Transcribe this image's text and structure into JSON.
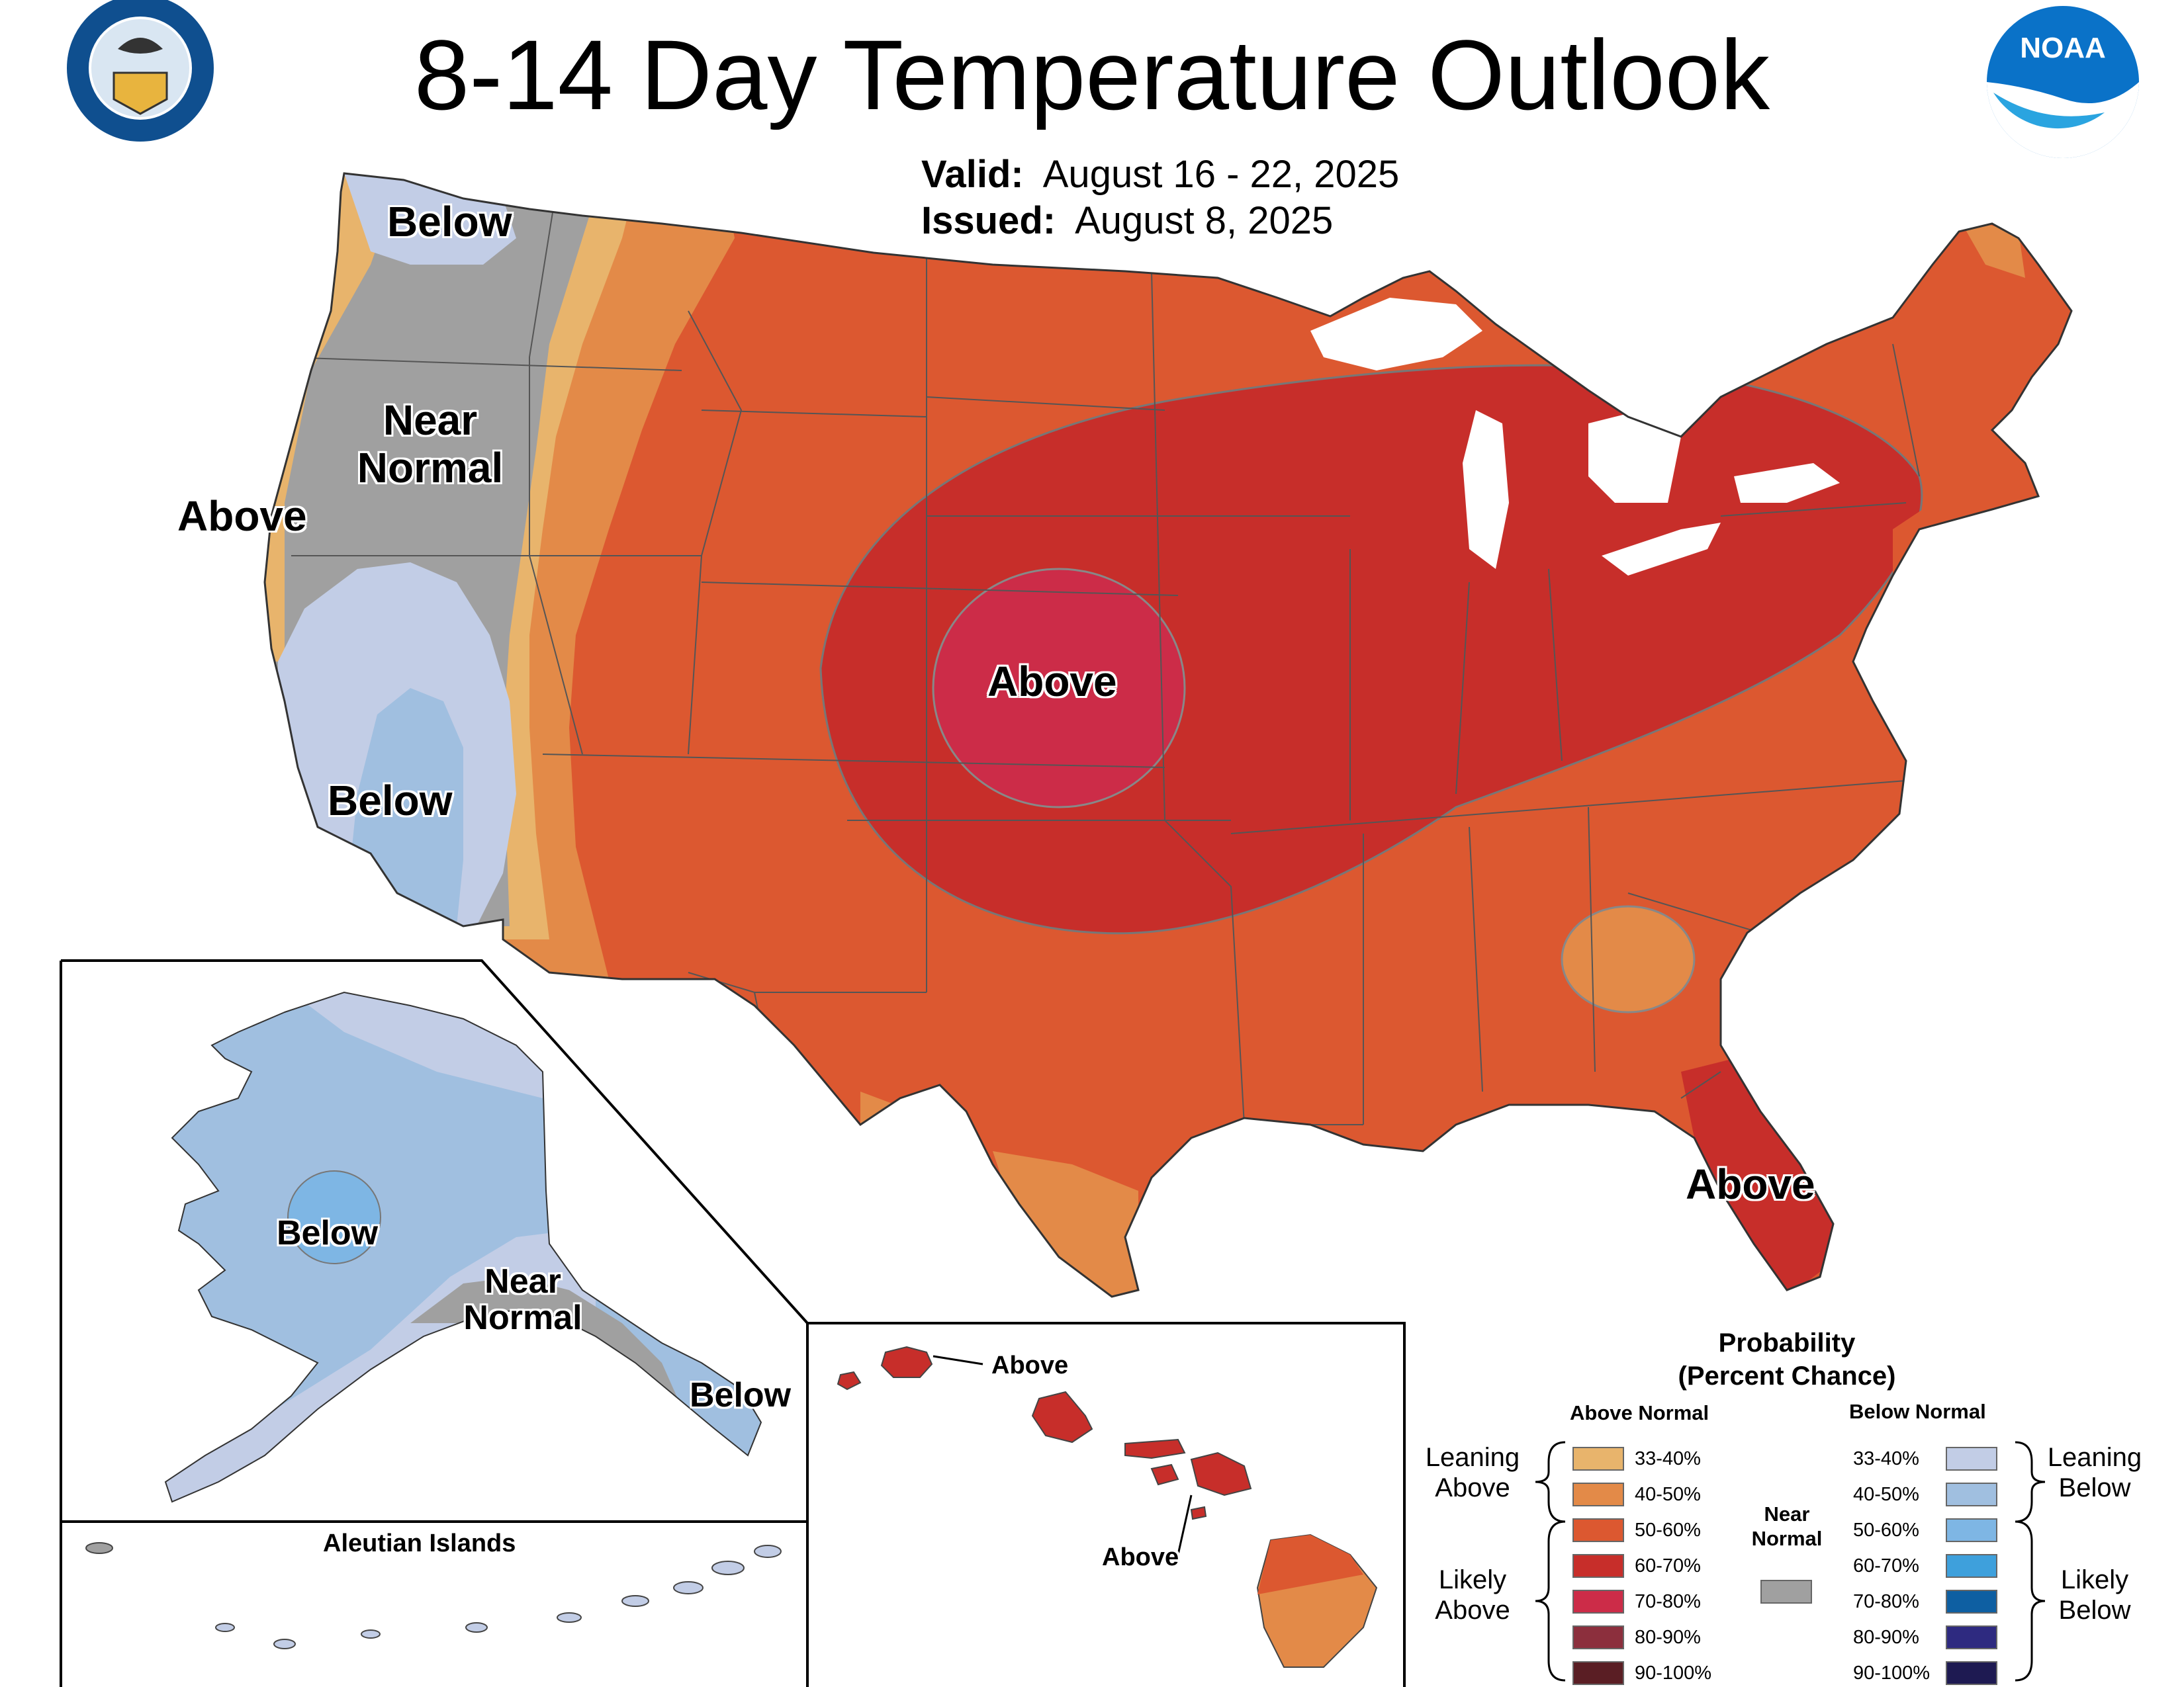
{
  "title": "8-14 Day Temperature Outlook",
  "valid": {
    "label": "Valid:",
    "value": "August 16 - 22, 2025"
  },
  "issued": {
    "label": "Issued:",
    "value": "August 8, 2025"
  },
  "logos": {
    "doc": "DEPARTMENT OF COMMERCE · UNITED STATES OF AMERICA",
    "noaa": "NOAA"
  },
  "map_labels": {
    "nw_below": "Below",
    "near_normal_1": "Near",
    "near_normal_2": "Normal",
    "ca_above": "Above",
    "sw_below": "Below",
    "central_above": "Above",
    "fl_above": "Above",
    "ak_below": "Below",
    "ak_near_1": "Near",
    "ak_near_2": "Normal",
    "ak_se_below": "Below",
    "aleutian": "Aleutian Islands",
    "hi_above_1": "Above",
    "hi_above_2": "Above"
  },
  "legend": {
    "title_1": "Probability",
    "title_2": "(Percent Chance)",
    "above_header": "Above Normal",
    "below_header": "Below Normal",
    "leaning_above": [
      "Leaning",
      "Above"
    ],
    "likely_above": [
      "Likely",
      "Above"
    ],
    "leaning_below": [
      "Leaning",
      "Below"
    ],
    "likely_below": [
      "Likely",
      "Below"
    ],
    "near_normal": [
      "Near",
      "Normal"
    ],
    "near_normal_color": "#a0a0a0",
    "above": [
      {
        "range": "33-40%",
        "color": "#e8b46c"
      },
      {
        "range": "40-50%",
        "color": "#e38a48"
      },
      {
        "range": "50-60%",
        "color": "#dc5830"
      },
      {
        "range": "60-70%",
        "color": "#c72e2a"
      },
      {
        "range": "70-80%",
        "color": "#cc2c48"
      },
      {
        "range": "80-90%",
        "color": "#8c2f3d"
      },
      {
        "range": "90-100%",
        "color": "#5a1e24"
      }
    ],
    "below": [
      {
        "range": "33-40%",
        "color": "#c2cde6"
      },
      {
        "range": "40-50%",
        "color": "#a0bfe0"
      },
      {
        "range": "50-60%",
        "color": "#7eb6e4"
      },
      {
        "range": "60-70%",
        "color": "#3ea0dc"
      },
      {
        "range": "70-80%",
        "color": "#0e5fa2"
      },
      {
        "range": "80-90%",
        "color": "#2e2a80"
      },
      {
        "range": "90-100%",
        "color": "#1e1a52"
      }
    ]
  }
}
